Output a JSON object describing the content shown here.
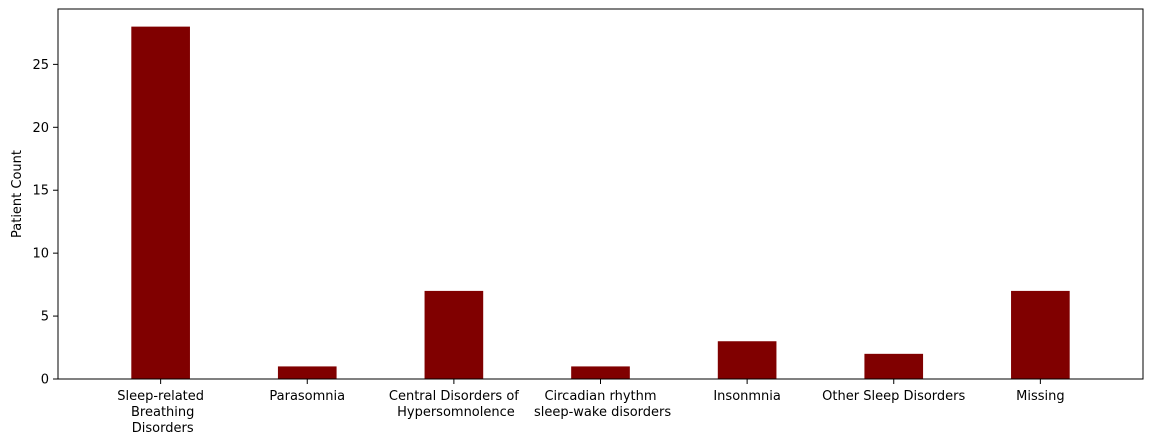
{
  "chart_data": {
    "type": "bar",
    "categories": [
      "Sleep-related\n Breathing\n Disorders",
      "Parasomnia",
      "Central Disorders of\n Hypersomnolence",
      "Circadian rhythm\n sleep-wake disorders",
      "Insonmnia",
      "Other Sleep Disorders",
      "Missing"
    ],
    "values": [
      28,
      1,
      7,
      1,
      3,
      2,
      7
    ],
    "title": "",
    "xlabel": "",
    "ylabel": "Patient Count",
    "ylim": [
      0,
      29.4
    ],
    "yticks": [
      0,
      5,
      10,
      15,
      20,
      25
    ],
    "bar_color": "#800000",
    "grid": false,
    "legend": "none"
  }
}
